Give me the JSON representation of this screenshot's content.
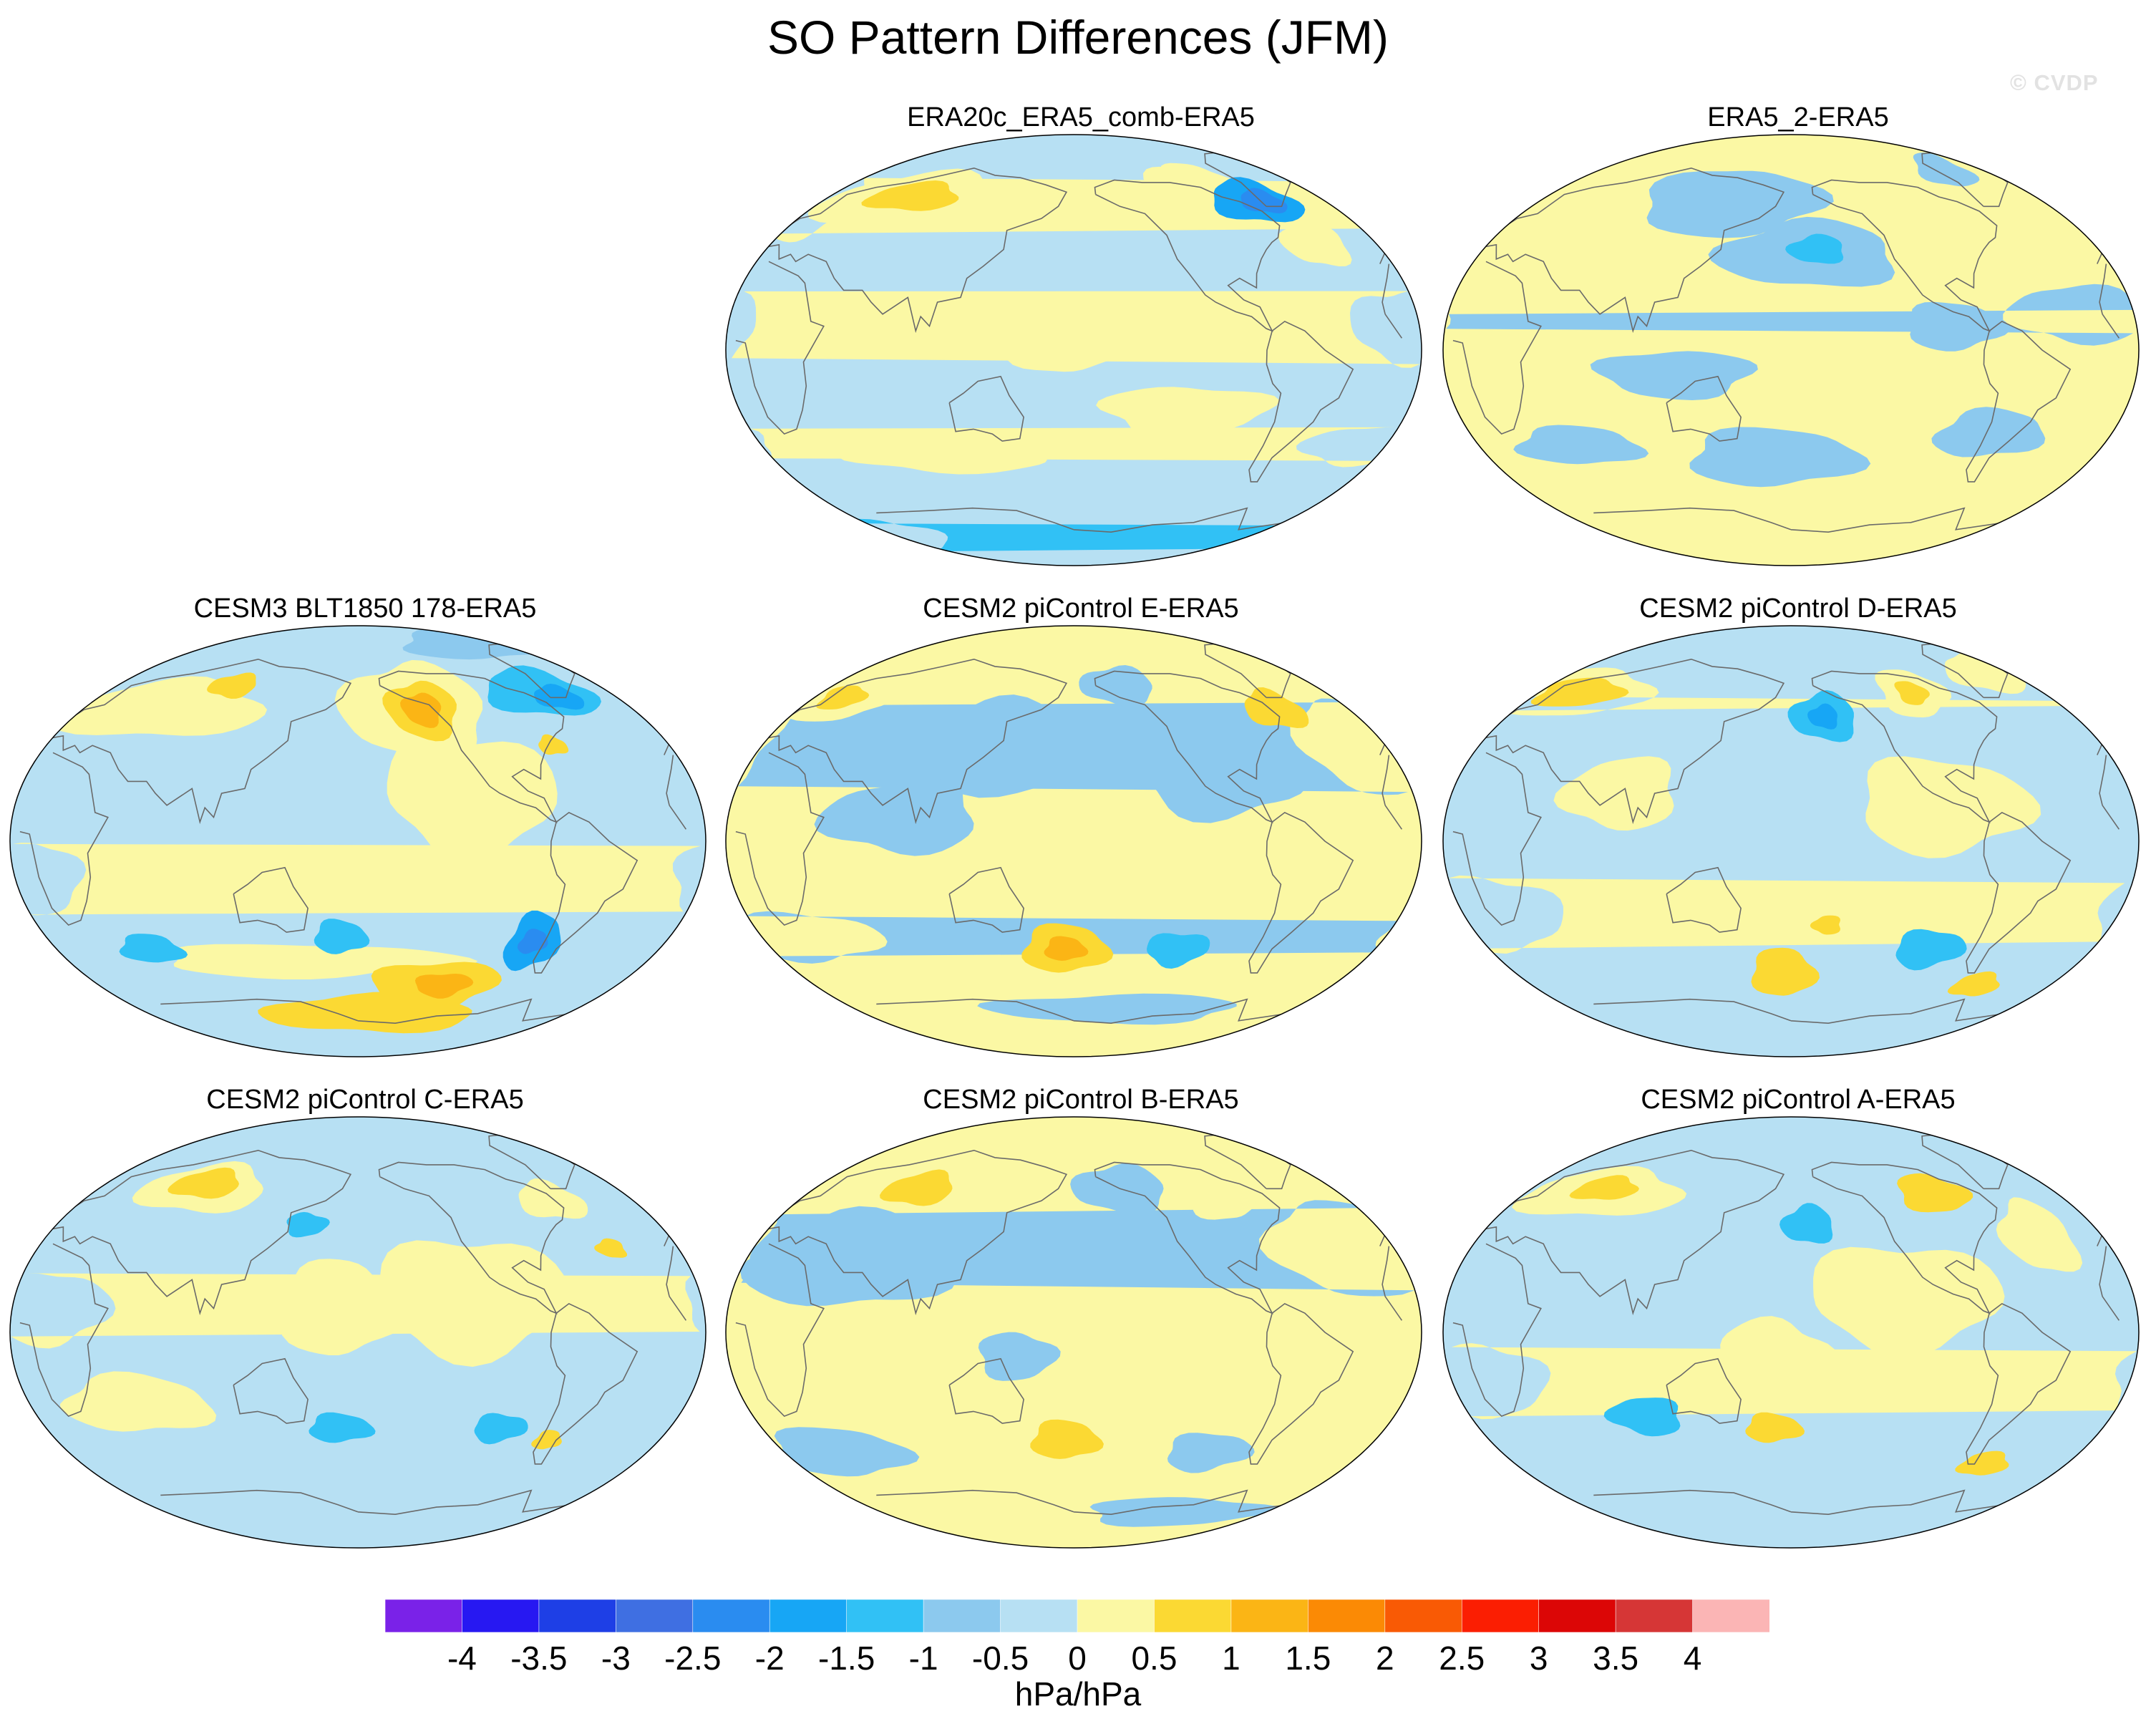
{
  "title": "SO Pattern Differences (JFM)",
  "watermark": "© CVDP",
  "units": "hPa/hPa",
  "colorbar": {
    "labels": [
      "-4",
      "-3.5",
      "-3",
      "-2.5",
      "-2",
      "-1.5",
      "-1",
      "-0.5",
      "0",
      "0.5",
      "1",
      "1.5",
      "2",
      "2.5",
      "3",
      "3.5",
      "4"
    ],
    "colors": [
      "#7a22e8",
      "#2718f2",
      "#1e3fe6",
      "#3f6fe2",
      "#2a8cf0",
      "#17a6f5",
      "#31c1f5",
      "#8cc9ee",
      "#b7e0f3",
      "#fbf8a4",
      "#fbd933",
      "#fbb515",
      "#fb8a05",
      "#f95a05",
      "#fb1e02",
      "#dc0606",
      "#d63636",
      "#fbb5b5"
    ]
  },
  "panels": [
    {
      "id": "era20c",
      "title": "ERA20c_ERA5_comb-ERA5",
      "base": "#b7e0f3",
      "features": [
        {
          "lon": 75,
          "lat": 62,
          "rlon": 60,
          "rlat": 12,
          "level": 0.5
        },
        {
          "lon": 72,
          "lat": 64,
          "rlon": 30,
          "rlat": 6,
          "level": 1.0
        },
        {
          "lon": 15,
          "lat": 60,
          "rlon": 20,
          "rlat": 14,
          "level": 0.5
        },
        {
          "lon": -40,
          "lat": 45,
          "rlon": 18,
          "rlat": 10,
          "level": 0.5
        },
        {
          "lon": -100,
          "lat": 65,
          "rlon": 30,
          "rlat": 12,
          "level": 0.5
        },
        {
          "lon": -10,
          "lat": 10,
          "rlon": 25,
          "rlat": 15,
          "level": 0.5
        },
        {
          "lon": 175,
          "lat": 5,
          "rlon": 30,
          "rlat": 15,
          "level": 0.5
        },
        {
          "lon": -120,
          "lat": -25,
          "rlon": 45,
          "rlat": 10,
          "level": 0.5
        },
        {
          "lon": 110,
          "lat": -45,
          "rlon": 60,
          "rlat": 6,
          "level": 0.5
        },
        {
          "lon": -20,
          "lat": -40,
          "rlon": 30,
          "rlat": 8,
          "level": 0.5
        },
        {
          "lon": -90,
          "lat": 70,
          "rlon": 25,
          "rlat": 8,
          "level": 0.5
        },
        {
          "lon": -60,
          "lat": 62,
          "rlon": 28,
          "rlat": 9,
          "level": -1.5
        },
        {
          "lon": -55,
          "lat": 62,
          "rlon": 14,
          "rlat": 5,
          "level": -2.0
        },
        {
          "lon": 30,
          "lat": -78,
          "rlon": 40,
          "rlat": 7,
          "level": -1.0
        }
      ]
    },
    {
      "id": "era5_2",
      "title": "ERA5_2-ERA5",
      "base": "#fbf8a4",
      "features": [
        {
          "lon": 140,
          "lat": 62,
          "rlon": 60,
          "rlat": 14,
          "level": -0.5
        },
        {
          "lon": -170,
          "lat": 40,
          "rlon": 50,
          "rlat": 14,
          "level": -0.5
        },
        {
          "lon": -165,
          "lat": 42,
          "rlon": 16,
          "rlat": 6,
          "level": -1.0
        },
        {
          "lon": -30,
          "lat": 15,
          "rlon": 35,
          "rlat": 12,
          "level": -0.5
        },
        {
          "lon": 120,
          "lat": -10,
          "rlon": 40,
          "rlat": 10,
          "level": -0.5
        },
        {
          "lon": 170,
          "lat": -45,
          "rlon": 50,
          "rlat": 12,
          "level": -0.5
        },
        {
          "lon": -95,
          "lat": 10,
          "rlon": 25,
          "rlat": 10,
          "level": -0.5
        },
        {
          "lon": -70,
          "lat": -35,
          "rlon": 30,
          "rlat": 10,
          "level": -0.5
        },
        {
          "lon": 60,
          "lat": -40,
          "rlon": 35,
          "rlat": 8,
          "level": -0.5
        },
        {
          "lon": -60,
          "lat": 75,
          "rlon": 20,
          "rlat": 7,
          "level": -0.5
        }
      ]
    },
    {
      "id": "cesm3",
      "title": "CESM3 BLT1850 178-ERA5",
      "base": "#b7e0f3",
      "features": [
        {
          "lon": -145,
          "lat": 55,
          "rlon": 45,
          "rlat": 20,
          "level": 0.5
        },
        {
          "lon": -140,
          "lat": 55,
          "rlon": 22,
          "rlat": 12,
          "level": 1.0
        },
        {
          "lon": -140,
          "lat": 55,
          "rlon": 12,
          "rlat": 7,
          "level": 1.5
        },
        {
          "lon": -120,
          "lat": 20,
          "rlon": 45,
          "rlat": 25,
          "level": 0.5
        },
        {
          "lon": 60,
          "lat": 55,
          "rlon": 60,
          "rlat": 12,
          "level": 0.5
        },
        {
          "lon": 95,
          "lat": 65,
          "rlon": 16,
          "rlat": 5,
          "level": 1.0
        },
        {
          "lon": -60,
          "lat": 62,
          "rlon": 35,
          "rlat": 10,
          "level": -1.0
        },
        {
          "lon": -50,
          "lat": 60,
          "rlon": 15,
          "rlat": 5,
          "level": -1.5
        },
        {
          "lon": -80,
          "lat": 82,
          "rlon": 60,
          "rlat": 6,
          "level": -0.5
        },
        {
          "lon": 150,
          "lat": -50,
          "rlon": 90,
          "rlat": 7,
          "level": 0.5
        },
        {
          "lon": -130,
          "lat": -60,
          "rlon": 40,
          "rlat": 10,
          "level": 1.0
        },
        {
          "lon": -125,
          "lat": -60,
          "rlon": 18,
          "rlat": 5,
          "level": 1.5
        },
        {
          "lon": -170,
          "lat": -72,
          "rlon": 80,
          "rlat": 8,
          "level": 1.0
        },
        {
          "lon": -80,
          "lat": -42,
          "rlon": 15,
          "rlat": 12,
          "level": -1.5
        },
        {
          "lon": -80,
          "lat": -42,
          "rlon": 8,
          "rlat": 5,
          "level": -2.0
        },
        {
          "lon": 170,
          "lat": -40,
          "rlon": 15,
          "rlat": 7,
          "level": -1.0
        },
        {
          "lon": 60,
          "lat": -45,
          "rlon": 18,
          "rlat": 6,
          "level": -1.0
        },
        {
          "lon": 10,
          "lat": -15,
          "rlon": 25,
          "rlat": 15,
          "level": 0.5
        },
        {
          "lon": -70,
          "lat": 40,
          "rlon": 8,
          "rlat": 4,
          "level": 1.0
        }
      ]
    },
    {
      "id": "cesm2_e",
      "title": "CESM2 piControl E-ERA5",
      "base": "#fbf8a4",
      "features": [
        {
          "lon": 150,
          "lat": 40,
          "rlon": 50,
          "rlat": 20,
          "level": -0.5
        },
        {
          "lon": -100,
          "lat": 30,
          "rlon": 45,
          "rlat": 20,
          "level": -0.5
        },
        {
          "lon": -20,
          "lat": 40,
          "rlon": 30,
          "rlat": 20,
          "level": -0.5
        },
        {
          "lon": 90,
          "lat": 10,
          "rlon": 40,
          "rlat": 15,
          "level": -0.5
        },
        {
          "lon": -150,
          "lat": 65,
          "rlon": 25,
          "rlat": 8,
          "level": -0.5
        },
        {
          "lon": 30,
          "lat": 60,
          "rlon": 30,
          "rlat": 10,
          "level": 0.5
        },
        {
          "lon": 30,
          "lat": 60,
          "rlon": 14,
          "rlat": 5,
          "level": 1.0
        },
        {
          "lon": -55,
          "lat": 55,
          "rlon": 18,
          "rlat": 8,
          "level": 1.0
        },
        {
          "lon": 175,
          "lat": -45,
          "rlon": 25,
          "rlat": 10,
          "level": 1.0
        },
        {
          "lon": 175,
          "lat": -45,
          "rlon": 12,
          "rlat": 5,
          "level": 1.5
        },
        {
          "lon": -120,
          "lat": -45,
          "rlon": 18,
          "rlat": 7,
          "level": -1.0
        },
        {
          "lon": 30,
          "lat": -40,
          "rlon": 40,
          "rlat": 10,
          "level": -0.5
        },
        {
          "lon": -150,
          "lat": -70,
          "rlon": 90,
          "rlat": 6,
          "level": -0.5
        }
      ]
    },
    {
      "id": "cesm2_d",
      "title": "CESM2 piControl D-ERA5",
      "base": "#b7e0f3",
      "features": [
        {
          "lon": 40,
          "lat": 62,
          "rlon": 45,
          "rlat": 10,
          "level": 0.5
        },
        {
          "lon": 40,
          "lat": 62,
          "rlon": 28,
          "rlat": 6,
          "level": 1.0
        },
        {
          "lon": -100,
          "lat": 62,
          "rlon": 22,
          "rlat": 10,
          "level": 0.5
        },
        {
          "lon": -100,
          "lat": 62,
          "rlon": 10,
          "rlat": 5,
          "level": 1.0
        },
        {
          "lon": -40,
          "lat": 70,
          "rlon": 25,
          "rlat": 8,
          "level": 0.5
        },
        {
          "lon": -160,
          "lat": 52,
          "rlon": 20,
          "rlat": 10,
          "level": -1.0
        },
        {
          "lon": -160,
          "lat": 52,
          "rlon": 9,
          "rlat": 5,
          "level": -1.5
        },
        {
          "lon": -100,
          "lat": 15,
          "rlon": 45,
          "rlat": 20,
          "level": 0.5
        },
        {
          "lon": 90,
          "lat": 20,
          "rlon": 30,
          "rlat": 15,
          "level": 0.5
        },
        {
          "lon": -160,
          "lat": -35,
          "rlon": 18,
          "rlat": 8,
          "level": 0.5
        },
        {
          "lon": -160,
          "lat": -35,
          "rlon": 8,
          "rlat": 4,
          "level": 1.0
        },
        {
          "lon": 175,
          "lat": -55,
          "rlon": 20,
          "rlat": 10,
          "level": 1.0
        },
        {
          "lon": -100,
          "lat": -45,
          "rlon": 20,
          "rlat": 8,
          "level": -1.0
        },
        {
          "lon": -60,
          "lat": -60,
          "rlon": 15,
          "rlat": 5,
          "level": 1.0
        },
        {
          "lon": 20,
          "lat": -30,
          "rlon": 35,
          "rlat": 15,
          "level": 0.5
        }
      ]
    },
    {
      "id": "cesm2_c",
      "title": "CESM2 piControl C-ERA5",
      "base": "#b7e0f3",
      "features": [
        {
          "lon": 80,
          "lat": 60,
          "rlon": 40,
          "rlat": 10,
          "level": 0.5
        },
        {
          "lon": 80,
          "lat": 62,
          "rlon": 22,
          "rlat": 6,
          "level": 1.0
        },
        {
          "lon": -120,
          "lat": 15,
          "rlon": 50,
          "rlat": 25,
          "level": 0.5
        },
        {
          "lon": 170,
          "lat": 10,
          "rlon": 30,
          "rlat": 20,
          "level": 0.5
        },
        {
          "lon": -60,
          "lat": 55,
          "rlon": 20,
          "rlat": 8,
          "level": 0.5
        },
        {
          "lon": -40,
          "lat": 35,
          "rlon": 8,
          "rlat": 4,
          "level": 1.0
        },
        {
          "lon": 20,
          "lat": 10,
          "rlon": 30,
          "rlat": 15,
          "level": 0.5
        },
        {
          "lon": 170,
          "lat": -40,
          "rlon": 18,
          "rlat": 6,
          "level": -1.0
        },
        {
          "lon": -100,
          "lat": -40,
          "rlon": 15,
          "rlat": 6,
          "level": -1.0
        },
        {
          "lon": -70,
          "lat": -45,
          "rlon": 8,
          "rlat": 4,
          "level": 1.0
        },
        {
          "lon": 150,
          "lat": 45,
          "rlon": 12,
          "rlat": 5,
          "level": -1.0
        },
        {
          "lon": 60,
          "lat": -30,
          "rlon": 40,
          "rlat": 12,
          "level": 0.5
        }
      ]
    },
    {
      "id": "cesm2_b",
      "title": "CESM2 piControl B-ERA5",
      "base": "#fbf8a4",
      "features": [
        {
          "lon": 80,
          "lat": 60,
          "rlon": 45,
          "rlat": 12,
          "level": 0.5
        },
        {
          "lon": 80,
          "lat": 60,
          "rlon": 22,
          "rlat": 7,
          "level": 1.0
        },
        {
          "lon": 60,
          "lat": 30,
          "rlon": 55,
          "rlat": 20,
          "level": -0.5
        },
        {
          "lon": -150,
          "lat": 60,
          "rlon": 30,
          "rlat": 10,
          "level": -0.5
        },
        {
          "lon": -30,
          "lat": 35,
          "rlon": 40,
          "rlat": 20,
          "level": -0.5
        },
        {
          "lon": -90,
          "lat": 55,
          "rlon": 20,
          "rlat": 8,
          "level": 0.5
        },
        {
          "lon": 150,
          "lat": -10,
          "rlon": 20,
          "rlat": 10,
          "level": -0.5
        },
        {
          "lon": 175,
          "lat": -45,
          "rlon": 20,
          "rlat": 8,
          "level": 1.0
        },
        {
          "lon": -100,
          "lat": -50,
          "rlon": 25,
          "rlat": 8,
          "level": -0.5
        },
        {
          "lon": 40,
          "lat": -50,
          "rlon": 40,
          "rlat": 10,
          "level": -0.5
        },
        {
          "lon": -100,
          "lat": -75,
          "rlon": 70,
          "rlat": 6,
          "level": -0.5
        }
      ]
    },
    {
      "id": "cesm2_a",
      "title": "CESM2 piControl A-ERA5",
      "base": "#b7e0f3",
      "features": [
        {
          "lon": 60,
          "lat": 58,
          "rlon": 50,
          "rlat": 10,
          "level": 0.5
        },
        {
          "lon": 60,
          "lat": 60,
          "rlon": 20,
          "rlat": 5,
          "level": 1.0
        },
        {
          "lon": -90,
          "lat": 58,
          "rlon": 22,
          "rlat": 8,
          "level": 1.0
        },
        {
          "lon": -120,
          "lat": 15,
          "rlon": 50,
          "rlat": 22,
          "level": 0.5
        },
        {
          "lon": 170,
          "lat": -10,
          "rlon": 30,
          "rlat": 15,
          "level": 0.5
        },
        {
          "lon": -40,
          "lat": 40,
          "rlon": 20,
          "rlat": 15,
          "level": 0.5
        },
        {
          "lon": -170,
          "lat": 45,
          "rlon": 15,
          "rlat": 8,
          "level": -1.0
        },
        {
          "lon": 170,
          "lat": -40,
          "rlon": 16,
          "rlat": 6,
          "level": 1.0
        },
        {
          "lon": -60,
          "lat": -55,
          "rlon": 15,
          "rlat": 5,
          "level": 1.0
        },
        {
          "lon": 100,
          "lat": -35,
          "rlon": 20,
          "rlat": 8,
          "level": -1.0
        },
        {
          "lon": 20,
          "lat": -20,
          "rlon": 30,
          "rlat": 15,
          "level": 0.5
        }
      ]
    }
  ]
}
